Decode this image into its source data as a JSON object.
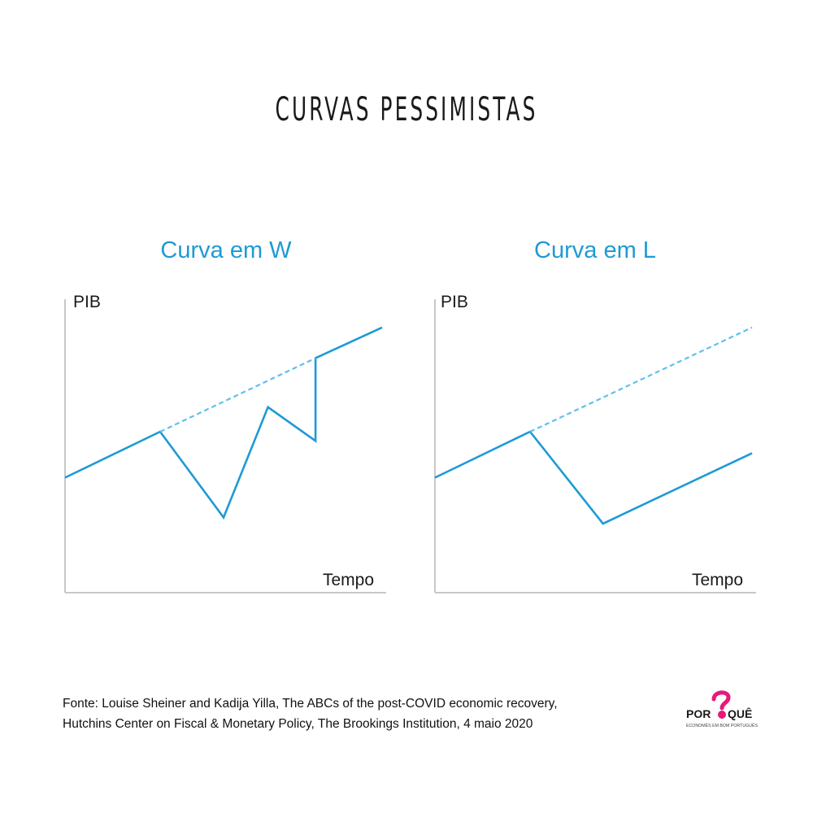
{
  "page": {
    "title": "CURVAS PESSIMISTAS",
    "source_line1": "Fonte: Louise Sheiner and Kadija Yilla, The ABCs of the post-COVID economic recovery,",
    "source_line2": "Hutchins Center on Fiscal & Monetary Policy, The Brookings Institution, 4 maio 2020",
    "logo_text": "POR QUÊ",
    "logo_tagline": "ECONOMÊS EM BOM PORTUGUÊS"
  },
  "colors": {
    "accent": "#1e9ad6",
    "trend_dashed": "#5fc0ea",
    "axis": "#c8c8c8",
    "logo_pink": "#e6197a"
  },
  "chart_data": [
    {
      "type": "line",
      "title": "Curva em W",
      "ylabel": "PIB",
      "xlabel": "Tempo",
      "xlim": [
        0,
        10
      ],
      "ylim": [
        0,
        10
      ],
      "grid": false,
      "series": [
        {
          "style": "solid",
          "points": [
            [
              0,
              3.7
            ],
            [
              3.0,
              5.2
            ],
            [
              5.0,
              2.4
            ],
            [
              6.4,
              6.0
            ],
            [
              7.9,
              4.9
            ],
            [
              7.9,
              7.6
            ],
            [
              10,
              8.6
            ]
          ]
        },
        {
          "style": "dashed",
          "points": [
            [
              3.0,
              5.2
            ],
            [
              7.9,
              7.6
            ]
          ]
        }
      ]
    },
    {
      "type": "line",
      "title": "Curva em L",
      "ylabel": "PIB",
      "xlabel": "Tempo",
      "xlim": [
        0,
        10
      ],
      "ylim": [
        0,
        10
      ],
      "grid": false,
      "series": [
        {
          "style": "solid",
          "points": [
            [
              0,
              3.7
            ],
            [
              3.0,
              5.2
            ],
            [
              5.3,
              2.2
            ],
            [
              10,
              4.5
            ]
          ]
        },
        {
          "style": "dashed",
          "points": [
            [
              3.0,
              5.2
            ],
            [
              10,
              8.6
            ]
          ]
        }
      ]
    }
  ]
}
